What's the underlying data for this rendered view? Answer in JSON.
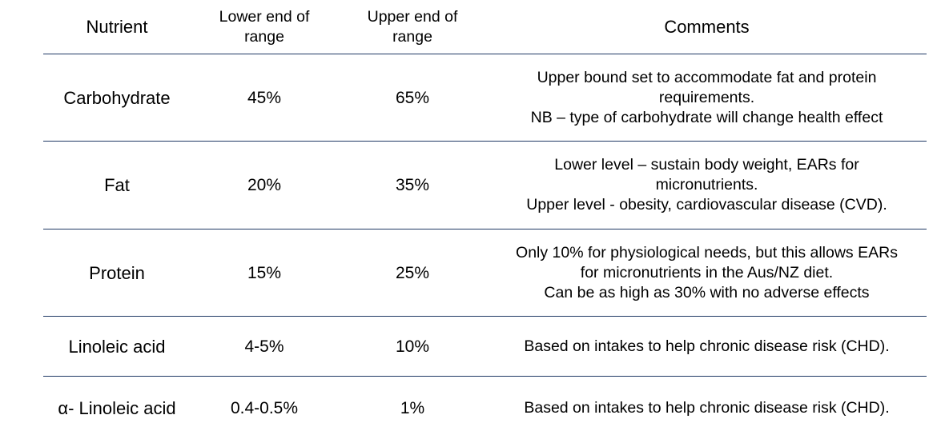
{
  "table": {
    "headers": {
      "nutrient": "Nutrient",
      "lower": [
        "Lower end of",
        "range"
      ],
      "upper": [
        "Upper end of",
        "range"
      ],
      "comments": "Comments"
    },
    "rows": [
      {
        "nutrient": "Carbohydrate",
        "lower": "45%",
        "upper": "65%",
        "comments": [
          "Upper bound set to accommodate fat and protein",
          "requirements.",
          "NB – type of carbohydrate will change health effect"
        ]
      },
      {
        "nutrient": "Fat",
        "lower": "20%",
        "upper": "35%",
        "comments": [
          "Lower level – sustain body weight, EARs for",
          "micronutrients.",
          "Upper level - obesity, cardiovascular disease (CVD)."
        ]
      },
      {
        "nutrient": "Protein",
        "lower": "15%",
        "upper": "25%",
        "comments": [
          "Only 10% for physiological needs, but this allows EARs",
          "for micronutrients in the Aus/NZ diet.",
          "Can be as high as 30% with no adverse effects"
        ]
      },
      {
        "nutrient": "Linoleic acid",
        "lower": "4-5%",
        "upper": "10%",
        "comments": [
          "Based on intakes to help chronic disease risk (CHD)."
        ]
      },
      {
        "nutrient": "α- Linoleic acid",
        "lower": "0.4-0.5%",
        "upper": "1%",
        "comments": [
          "Based on intakes to help chronic disease risk (CHD)."
        ]
      }
    ]
  }
}
